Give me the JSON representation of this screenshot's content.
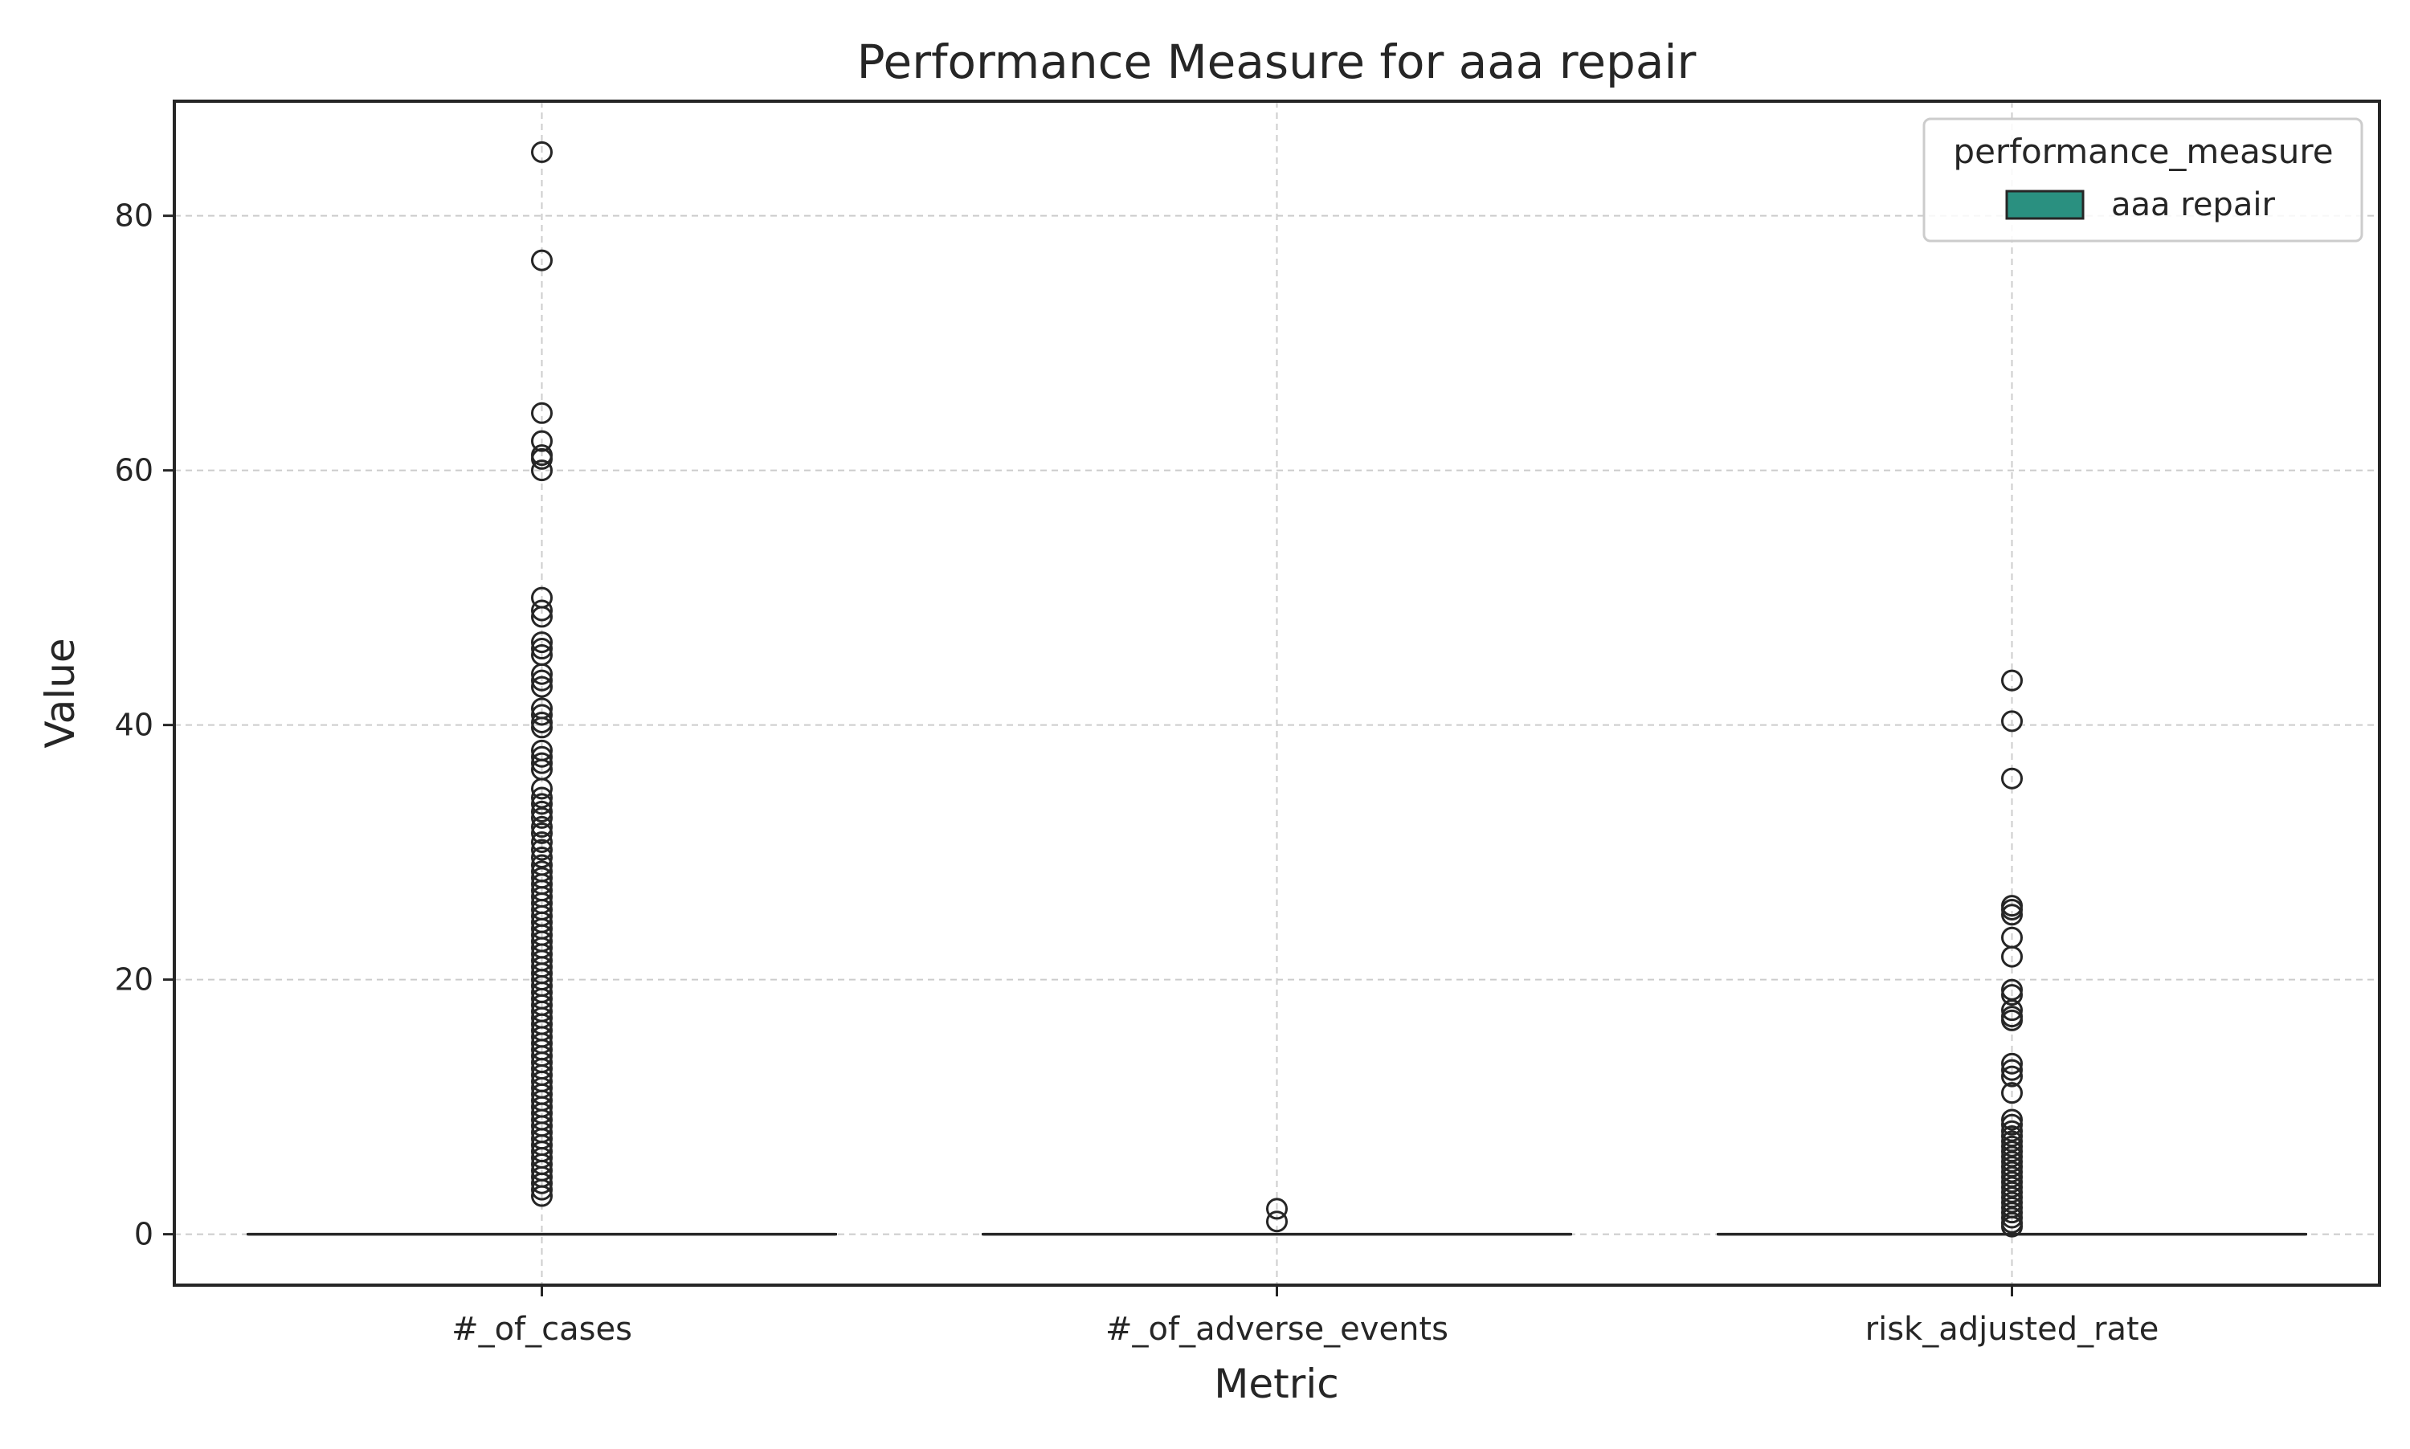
{
  "chart_data": {
    "type": "boxplot",
    "title": "Performance Measure for aaa repair",
    "xlabel": "Metric",
    "ylabel": "Value",
    "categories": [
      "#_of_cases",
      "#_of_adverse_events",
      "risk_adjusted_rate"
    ],
    "ylim": [
      -4,
      89
    ],
    "yticks": [
      0,
      20,
      40,
      60,
      80
    ],
    "grid": true,
    "legend": {
      "title": "performance_measure",
      "entries": [
        {
          "label": "aaa repair",
          "color": "#2a9080"
        }
      ],
      "placement": "upper-right"
    },
    "series": [
      {
        "name": "aaa repair",
        "color": "#2a9080",
        "boxes": [
          {
            "category": "#_of_cases",
            "q1": 0,
            "median": 0,
            "q3": 0,
            "whisker_low": 0,
            "whisker_high": 0,
            "outliers": [
              85,
              76.5,
              64.5,
              62.3,
              61.2,
              60.9,
              60,
              50,
              49,
              48.5,
              46.5,
              46,
              45.5,
              44,
              43.5,
              43,
              41.3,
              40.8,
              40.2,
              39.8,
              38,
              37.5,
              37,
              36.5,
              35,
              34.3,
              33.8,
              33.2,
              32.7,
              32,
              31.5,
              30.8,
              30.2,
              29.6,
              29,
              28.5,
              28,
              27.5,
              27,
              26.5,
              26,
              25.5,
              25,
              24.5,
              24,
              23.5,
              23,
              22.5,
              22,
              21.5,
              21,
              20.5,
              20,
              19.5,
              19,
              18.5,
              18,
              17.5,
              17,
              16.5,
              16,
              15.5,
              15,
              14.5,
              14,
              13.5,
              13,
              12.5,
              12,
              11.5,
              11,
              10.5,
              10,
              9.5,
              9,
              8.5,
              8,
              7.5,
              7,
              6.5,
              6,
              5.5,
              5,
              4.5,
              4,
              3.5,
              3
            ]
          },
          {
            "category": "#_of_adverse_events",
            "q1": 0,
            "median": 0,
            "q3": 0,
            "whisker_low": 0,
            "whisker_high": 0,
            "outliers": [
              2,
              1
            ]
          },
          {
            "category": "risk_adjusted_rate",
            "q1": 0,
            "median": 0,
            "q3": 0,
            "whisker_low": 0,
            "whisker_high": 0,
            "outliers": [
              43.5,
              40.3,
              35.8,
              25.8,
              25.5,
              25.1,
              23.3,
              21.8,
              19.2,
              18.8,
              17.6,
              17.1,
              16.8,
              13.4,
              12.9,
              12.4,
              11.1,
              9,
              8.6,
              8.1,
              7.7,
              7.3,
              6.9,
              6.5,
              6.1,
              5.7,
              5.3,
              4.9,
              4.5,
              4.1,
              3.7,
              3.3,
              2.9,
              2.5,
              2.1,
              1.7,
              1.3,
              0.9,
              0.6
            ]
          }
        ]
      }
    ]
  }
}
